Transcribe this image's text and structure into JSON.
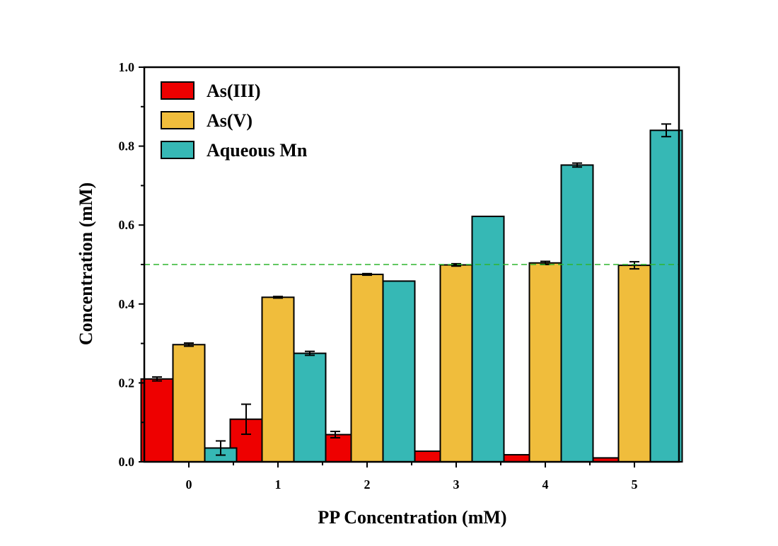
{
  "chart_data": {
    "type": "bar",
    "xlabel": "PP Concentration (mM)",
    "ylabel": "Concentration (mM)",
    "ylim": [
      0,
      1.0
    ],
    "yticks": [
      "0.0",
      "0.2",
      "0.4",
      "0.6",
      "0.8",
      "1.0"
    ],
    "categories": [
      "0",
      "1",
      "2",
      "3",
      "4",
      "5"
    ],
    "series": [
      {
        "name": "As(III)",
        "color": "#ee0000",
        "values": [
          0.21,
          0.108,
          0.069,
          0.027,
          0.018,
          0.01
        ],
        "errors": [
          0.005,
          0.038,
          0.008,
          0,
          0,
          0
        ]
      },
      {
        "name": "As(V)",
        "color": "#f0bd3c",
        "values": [
          0.297,
          0.417,
          0.475,
          0.499,
          0.504,
          0.498
        ],
        "errors": [
          0.004,
          0.002,
          0.002,
          0.003,
          0.004,
          0.009
        ]
      },
      {
        "name": "Aqueous Mn",
        "color": "#36b8b5",
        "values": [
          0.035,
          0.275,
          0.458,
          0.622,
          0.752,
          0.84
        ],
        "errors": [
          0.018,
          0.005,
          0,
          0,
          0.005,
          0.016
        ]
      }
    ],
    "reference_line": {
      "y": 0.5,
      "color": "#2fb52f",
      "style": "dashed"
    },
    "legend_position": "top-left",
    "grid": false
  }
}
